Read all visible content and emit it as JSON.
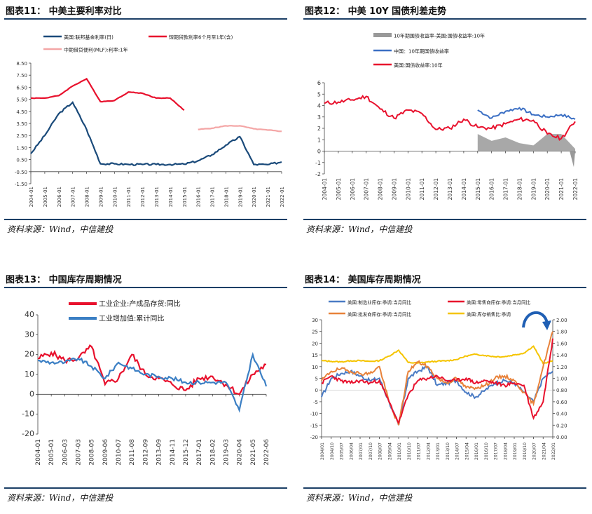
{
  "panels": [
    {
      "title": "图表11：  中美主要利率对比",
      "source": "资料来源：Wind，中信建投"
    },
    {
      "title": "图表12：  中美 10Y 国债利差走势",
      "source": "资料来源：Wind，中信建投"
    },
    {
      "title": "图表13：  中国库存周期情况",
      "source": "资料来源：Wind，中信建投"
    },
    {
      "title": "图表14：  美国库存周期情况",
      "source": "资料来源：Wind，中信建投"
    }
  ],
  "chart_data": [
    {
      "type": "line",
      "x": [
        "2004-01",
        "2005-01",
        "2006-01",
        "2007-01",
        "2008-01",
        "2009-01",
        "2010-01",
        "2011-01",
        "2012-01",
        "2013-01",
        "2014-01",
        "2015-01",
        "2016-01",
        "2017-01",
        "2018-01",
        "2019-01",
        "2020-01",
        "2021-01",
        "2022-01"
      ],
      "ylim": [
        -1.5,
        8.5
      ],
      "yticks": [
        "8.50",
        "7.50",
        "6.50",
        "5.50",
        "4.50",
        "3.50",
        "2.50",
        "1.50",
        "0.50",
        "-0.50",
        "-1.50"
      ],
      "series": [
        {
          "name": "美国:联邦基金利率(日)",
          "color": "#1a4a7a",
          "values": [
            1.0,
            2.5,
            4.3,
            5.25,
            3.0,
            0.15,
            0.15,
            0.1,
            0.1,
            0.1,
            0.1,
            0.12,
            0.4,
            0.9,
            1.7,
            2.4,
            0.1,
            0.08,
            0.3
          ]
        },
        {
          "name": "短期贷款利率6个月至1年(含)",
          "color": "#e8112d",
          "values": [
            5.6,
            5.6,
            5.8,
            6.6,
            7.2,
            5.3,
            5.4,
            6.1,
            6.0,
            5.6,
            5.6,
            4.6,
            null,
            null,
            null,
            null,
            null,
            null,
            null
          ]
        },
        {
          "name": "中期借贷便利(MLF):利率:1年",
          "color": "#f4a6a6",
          "values": [
            null,
            null,
            null,
            null,
            null,
            null,
            null,
            null,
            null,
            null,
            null,
            null,
            3.0,
            3.1,
            3.3,
            3.3,
            3.05,
            2.95,
            2.85
          ]
        }
      ]
    },
    {
      "type": "line",
      "x": [
        "2004-01",
        "2005-01",
        "2006-01",
        "2007-01",
        "2008-01",
        "2009-01",
        "2010-01",
        "2011-01",
        "2012-01",
        "2013-01",
        "2014-01",
        "2015-01",
        "2016-01",
        "2017-01",
        "2018-01",
        "2019-01",
        "2020-01",
        "2021-01",
        "2022-01"
      ],
      "ylim": [
        -2,
        6
      ],
      "yticks": [
        "6",
        "5",
        "4",
        "3",
        "2",
        "1",
        "0",
        "-1",
        "-2"
      ],
      "series": [
        {
          "name": "10年期国债收益率-美国:国债收益率:10年",
          "color": "#999999",
          "values": [
            null,
            null,
            null,
            null,
            null,
            null,
            null,
            null,
            null,
            null,
            null,
            1.5,
            0.9,
            1.2,
            0.7,
            0.5,
            1.5,
            1.5,
            0.2
          ]
        },
        {
          "name": "中国：10年期国债收益率",
          "color": "#3b6fc4",
          "values": [
            null,
            null,
            null,
            null,
            null,
            null,
            null,
            null,
            null,
            null,
            null,
            3.6,
            2.9,
            3.5,
            3.8,
            3.2,
            3.0,
            3.2,
            2.8
          ]
        },
        {
          "name": "美国:国债收益率:10年",
          "color": "#e8112d",
          "values": [
            4.2,
            4.3,
            4.5,
            4.8,
            3.7,
            2.9,
            3.6,
            3.3,
            1.9,
            2.0,
            2.8,
            2.1,
            2.0,
            2.4,
            2.8,
            2.7,
            1.5,
            1.1,
            2.6
          ]
        }
      ]
    },
    {
      "type": "line",
      "x": [
        "2004-01",
        "2005-01",
        "2006-03",
        "2007-03",
        "2008-05",
        "2009-06",
        "2010-07",
        "2011-08",
        "2012-09",
        "2013-09",
        "2014-11",
        "2015-12",
        "2017-01",
        "2018-02",
        "2019-03",
        "2020-04",
        "2021-05",
        "2022-06"
      ],
      "ylim": [
        -20,
        40
      ],
      "yticks": [
        "40",
        "30",
        "20",
        "10",
        "0",
        "-10",
        "-20"
      ],
      "series": [
        {
          "name": "工业企业:产成品存货:同比",
          "color": "#e8112d",
          "values": [
            18,
            21,
            17,
            18,
            24,
            5,
            8,
            20,
            10,
            8,
            5,
            2,
            8,
            9,
            5,
            0,
            10,
            15
          ]
        },
        {
          "name": "工业增加值:累计同比",
          "color": "#3b7fc4",
          "values": [
            17,
            16,
            16,
            18,
            14,
            8,
            16,
            13,
            10,
            9,
            8,
            6,
            6,
            6,
            6,
            -8,
            20,
            4
          ]
        }
      ]
    },
    {
      "type": "line",
      "x": [
        "2004/01",
        "2004/10",
        "2005/07",
        "2006/04",
        "2007/01",
        "2007/10",
        "2008/07",
        "2009/04",
        "2010/01",
        "2010/10",
        "2011/07",
        "2012/04",
        "2013/01",
        "2013/10",
        "2014/07",
        "2015/04",
        "2016/01",
        "2016/10",
        "2017/07",
        "2018/04",
        "2019/01",
        "2019/10",
        "2020/07",
        "2021/04",
        "2022/01"
      ],
      "ylim_left": [
        -20,
        30
      ],
      "ylim_right": [
        0,
        2
      ],
      "yticks_left": [
        "30",
        "25",
        "20",
        "15",
        "10",
        "5",
        "0",
        "-5",
        "-10",
        "-15",
        "-20"
      ],
      "yticks_right": [
        "2.00",
        "1.80",
        "1.60",
        "1.40",
        "1.20",
        "1.00",
        "0.80",
        "0.60",
        "0.40",
        "0.20",
        "0.00"
      ],
      "series": [
        {
          "name": "美国:制造业库存:季调:当月同比",
          "color": "#4a7bc4",
          "axis": "left",
          "values": [
            -3,
            5,
            7,
            8,
            6,
            4,
            5,
            -5,
            -15,
            5,
            8,
            10,
            2,
            3,
            4,
            -1,
            -3,
            0,
            3,
            4,
            3,
            -1,
            -5,
            5,
            8
          ]
        },
        {
          "name": "美国:零售商库存:季调:当月同比",
          "color": "#e8112d",
          "axis": "left",
          "values": [
            3,
            6,
            4,
            3,
            4,
            3,
            4,
            -5,
            -14,
            -2,
            4,
            5,
            6,
            4,
            4,
            5,
            3,
            4,
            3,
            2,
            3,
            2,
            -12,
            -5,
            22
          ]
        },
        {
          "name": "美国:批发商库存:季调:当月同比",
          "color": "#e8823a",
          "axis": "left",
          "values": [
            4,
            8,
            9,
            8,
            7,
            7,
            10,
            -5,
            -15,
            8,
            12,
            10,
            5,
            3,
            5,
            1,
            1,
            2,
            5,
            6,
            4,
            -1,
            -6,
            10,
            25
          ]
        },
        {
          "name": "美国:库存销售比:季调",
          "color": "#f5c400",
          "axis": "right",
          "values": [
            1.3,
            1.29,
            1.28,
            1.3,
            1.3,
            1.29,
            1.3,
            1.38,
            1.48,
            1.27,
            1.26,
            1.28,
            1.29,
            1.3,
            1.32,
            1.38,
            1.41,
            1.39,
            1.37,
            1.37,
            1.4,
            1.43,
            1.55,
            1.25,
            1.3
          ]
        }
      ]
    }
  ]
}
